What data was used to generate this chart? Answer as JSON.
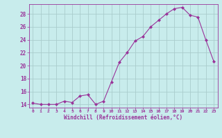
{
  "x": [
    0,
    1,
    2,
    3,
    4,
    5,
    6,
    7,
    8,
    9,
    10,
    11,
    12,
    13,
    14,
    15,
    16,
    17,
    18,
    19,
    20,
    21,
    22,
    23
  ],
  "y": [
    14.2,
    14.0,
    14.0,
    14.0,
    14.5,
    14.3,
    15.3,
    15.5,
    14.0,
    14.5,
    17.5,
    20.5,
    22.0,
    23.8,
    24.5,
    26.0,
    27.0,
    28.0,
    28.8,
    29.0,
    27.8,
    27.5,
    24.0,
    20.7
  ],
  "line_color": "#993399",
  "marker": "D",
  "marker_size": 2.0,
  "bg_color": "#c8ecec",
  "grid_color": "#aacccc",
  "xlabel": "Windchill (Refroidissement éolien,°C)",
  "xlabel_color": "#993399",
  "tick_color": "#993399",
  "ylabel_ticks": [
    14,
    16,
    18,
    20,
    22,
    24,
    26,
    28
  ],
  "xlim": [
    -0.5,
    23.5
  ],
  "ylim": [
    13.5,
    29.5
  ]
}
